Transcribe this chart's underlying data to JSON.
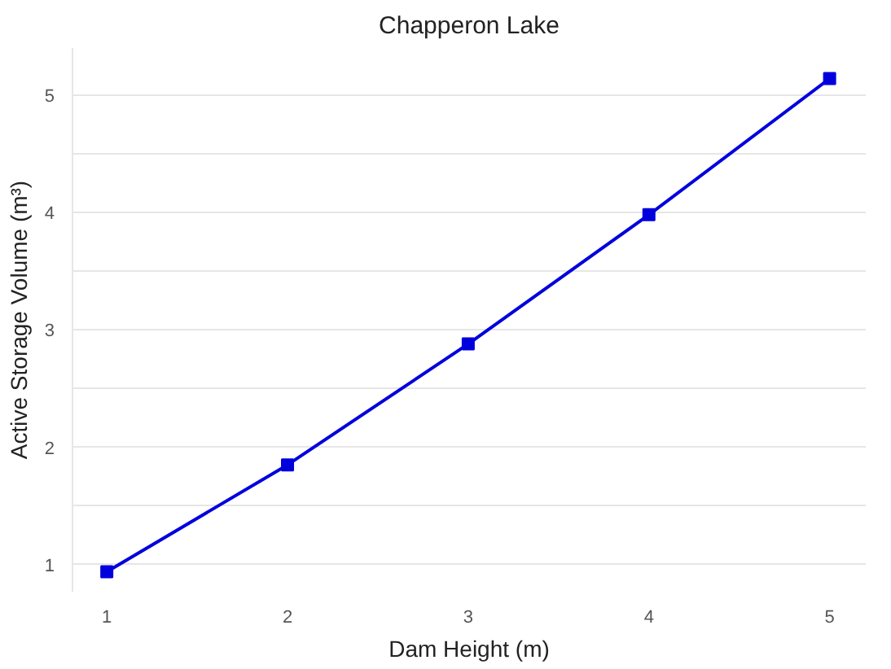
{
  "chart_data": {
    "type": "line",
    "title": "Chapperon Lake",
    "xlabel": "Dam Height (m)",
    "ylabel": "Active Storage Volume (m³)",
    "x": [
      1,
      2,
      3,
      4,
      5
    ],
    "series": [
      {
        "color": "#0000dd",
        "values": [
          0.94,
          1.85,
          2.88,
          3.98,
          5.14
        ]
      }
    ],
    "xlim": [
      0.81,
      5.2
    ],
    "ylim": [
      0.77,
      5.4
    ],
    "xticks": [
      1,
      2,
      3,
      4,
      5
    ],
    "yticks": [
      1,
      {
        "value": 1.5,
        "label": null
      },
      2,
      {
        "value": 2.5,
        "label": null
      },
      3,
      {
        "value": 3.5,
        "label": null
      },
      4,
      {
        "value": 4.5,
        "label": null
      },
      5
    ],
    "grid": "y",
    "marker": "square",
    "line_style": "solid"
  }
}
